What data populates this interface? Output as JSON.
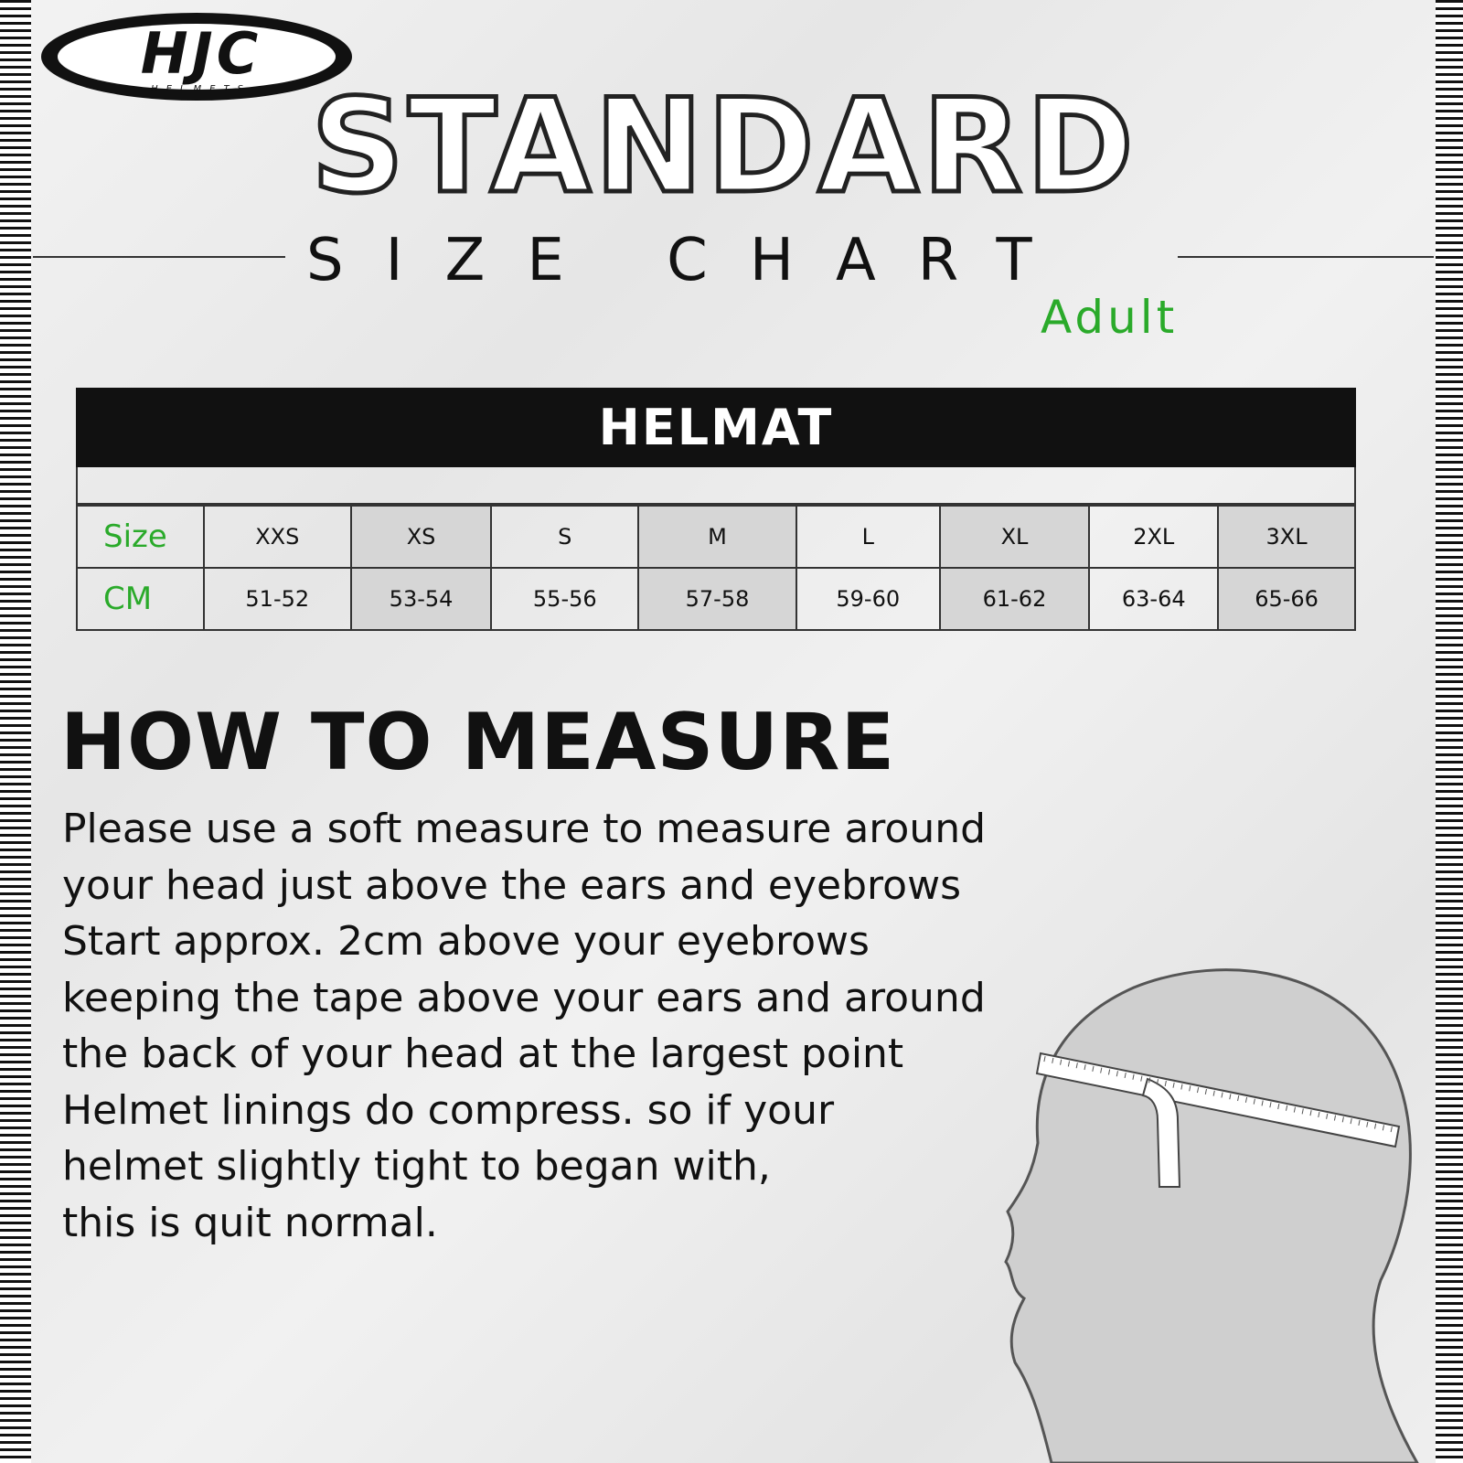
{
  "logo": {
    "text": "HJC",
    "subtext": "HELMETS"
  },
  "title": "STANDARD",
  "subtitle": "SIZE CHART",
  "audience": "Adult",
  "table": {
    "header": "HELMAT",
    "row_labels": [
      "Size",
      "CM"
    ],
    "columns": [
      {
        "size": "XXS",
        "cm": "51-52",
        "shaded": false
      },
      {
        "size": "XS",
        "cm": "53-54",
        "shaded": true
      },
      {
        "size": "S",
        "cm": "55-56",
        "shaded": false
      },
      {
        "size": "M",
        "cm": "57-58",
        "shaded": true
      },
      {
        "size": "L",
        "cm": "59-60",
        "shaded": false
      },
      {
        "size": "XL",
        "cm": "61-62",
        "shaded": true
      },
      {
        "size": "2XL",
        "cm": "63-64",
        "shaded": false
      },
      {
        "size": "3XL",
        "cm": "65-66",
        "shaded": true
      }
    ]
  },
  "measure": {
    "heading": "HOW TO MEASURE",
    "lines": [
      "Please use a soft measure to measure around",
      "your head just above the ears and eyebrows",
      "Start approx. 2cm above your eyebrows",
      "keeping the tape above your ears and around",
      "the back of your head at the largest point",
      "Helmet linings do compress. so if your",
      "helmet slightly tight to began with,",
      "this is quit normal."
    ]
  },
  "colors": {
    "accent": "#2aaa2a",
    "header_bg": "#111111",
    "shade": "#d6d6d6"
  }
}
